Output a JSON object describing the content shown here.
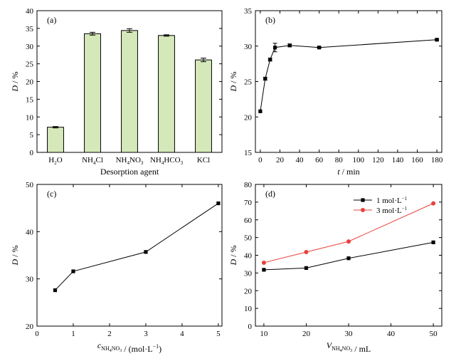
{
  "chart_data": [
    {
      "panel": "(a)",
      "type": "bar",
      "categories": [
        "H2O",
        "NH4Cl",
        "NH4NO3",
        "NH4HCO3",
        "KCl"
      ],
      "category_labels": [
        {
          "main": "H",
          "sub": "2",
          "rest": "O"
        },
        {
          "main": "NH",
          "sub": "4",
          "rest": "Cl"
        },
        {
          "main": "NH",
          "sub": "4",
          "rest": "NO",
          "sub2": "3"
        },
        {
          "main": "NH",
          "sub": "4",
          "rest": "HCO",
          "sub2": "3"
        },
        {
          "main": "KCl",
          "sub": "",
          "rest": ""
        }
      ],
      "values": [
        7.1,
        33.5,
        34.4,
        33.0,
        26.1
      ],
      "errors": [
        0.2,
        0.4,
        0.5,
        0.2,
        0.5
      ],
      "bar_color": "#d5e8b9",
      "xlabel": "Desorption agent",
      "ylabel": {
        "italic": "D",
        "rest": " / %"
      },
      "ylim": [
        0,
        40
      ],
      "yticks": [
        0,
        5,
        10,
        15,
        20,
        25,
        30,
        35,
        40
      ]
    },
    {
      "panel": "(b)",
      "type": "line",
      "x": [
        0,
        5,
        10,
        15,
        30,
        60,
        180
      ],
      "y": [
        20.8,
        25.4,
        28.1,
        29.8,
        30.1,
        29.8,
        30.9
      ],
      "errors": [
        0,
        0.2,
        0.2,
        0.6,
        0.2,
        0.1,
        0.1
      ],
      "color": "#000000",
      "xlabel": {
        "italic": "t",
        "rest": " / min"
      },
      "ylabel": {
        "italic": "D",
        "rest": " / %"
      },
      "xlim": [
        -5,
        185
      ],
      "ylim": [
        15,
        35
      ],
      "xticks": [
        0,
        20,
        40,
        60,
        80,
        100,
        120,
        140,
        160,
        180
      ],
      "yticks": [
        15,
        20,
        25,
        30,
        35
      ]
    },
    {
      "panel": "(c)",
      "type": "line",
      "x": [
        0.5,
        1,
        3,
        5
      ],
      "y": [
        27.6,
        31.6,
        35.7,
        46.0
      ],
      "color": "#000000",
      "xlabel": {
        "italic": "c",
        "sub": "NH4NO3",
        "sub_parts": [
          {
            "t": "NH"
          },
          {
            "t": "4",
            "s": true
          },
          {
            "t": "NO"
          },
          {
            "t": "3",
            "s": true
          }
        ],
        "rest": " / (mol·L",
        "sup": "−1",
        "tail": ")"
      },
      "ylabel": {
        "italic": "D",
        "rest": " / %"
      },
      "xlim": [
        0,
        5.1
      ],
      "ylim": [
        20,
        50
      ],
      "xticks": [
        0,
        1,
        2,
        3,
        4,
        5
      ],
      "yticks": [
        20,
        30,
        40,
        50
      ]
    },
    {
      "panel": "(d)",
      "type": "line",
      "x": [
        10,
        20,
        30,
        50
      ],
      "series": [
        {
          "name": "1 mol·L",
          "sup": "−1",
          "values": [
            31.8,
            32.8,
            38.3,
            47.3
          ],
          "color": "#000000",
          "marker": "square"
        },
        {
          "name": "3 mol·L",
          "sup": "−1",
          "values": [
            35.8,
            41.8,
            47.8,
            69.3
          ],
          "color": "#e8413c",
          "marker": "circle"
        }
      ],
      "xlabel": {
        "italic": "V",
        "sub": "NH4NO3",
        "sub_parts": [
          {
            "t": "NH"
          },
          {
            "t": "4",
            "s": true
          },
          {
            "t": "NO"
          },
          {
            "t": "3",
            "s": true
          }
        ],
        "rest": " / mL"
      },
      "ylabel": {
        "italic": "D",
        "rest": " / %"
      },
      "xlim": [
        8,
        52
      ],
      "ylim": [
        0,
        80
      ],
      "xticks": [
        10,
        20,
        30,
        40,
        50
      ],
      "yticks": [
        0,
        10,
        20,
        30,
        40,
        50,
        60,
        70,
        80
      ],
      "legend": "top-left"
    }
  ]
}
